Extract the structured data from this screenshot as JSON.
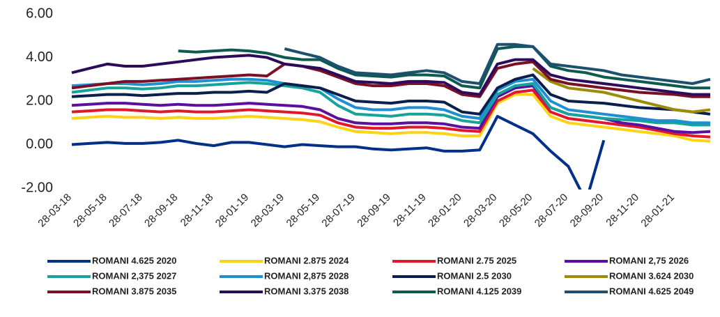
{
  "chart_data": {
    "type": "line",
    "x": [
      "28-03-18",
      "28-04-18",
      "28-05-18",
      "28-06-18",
      "28-07-18",
      "28-08-18",
      "28-09-18",
      "28-10-18",
      "28-11-18",
      "28-12-18",
      "28-01-19",
      "28-02-19",
      "28-03-19",
      "28-04-19",
      "28-05-19",
      "28-06-19",
      "28-07-19",
      "28-08-19",
      "28-09-19",
      "28-10-19",
      "28-11-19",
      "28-12-19",
      "28-01-20",
      "28-02-20",
      "28-03-20",
      "28-04-20",
      "28-05-20",
      "28-06-20",
      "28-07-20",
      "28-08-20",
      "28-09-20",
      "28-10-20",
      "28-11-20",
      "28-12-20",
      "28-01-21",
      "28-02-21",
      "28-03-21"
    ],
    "xlim": [
      "28-03-18",
      "28-03-21"
    ],
    "xticks": [
      "28-03-18",
      "28-05-18",
      "28-07-18",
      "28-09-18",
      "28-11-18",
      "28-01-19",
      "28-03-19",
      "28-05-19",
      "28-07-19",
      "28-09-19",
      "28-11-19",
      "28-01-20",
      "28-03-20",
      "28-05-20",
      "28-07-20",
      "28-09-20",
      "28-11-20",
      "28-01-21"
    ],
    "ylim": [
      -2,
      6
    ],
    "yticks": [
      {
        "value": -2,
        "label": "-2.00"
      },
      {
        "value": 0,
        "label": "0.00"
      },
      {
        "value": 2,
        "label": "2.00"
      },
      {
        "value": 4,
        "label": "4.00"
      },
      {
        "value": 6,
        "label": "6.00"
      }
    ],
    "grid": false,
    "legend": "bottom",
    "series": [
      {
        "name": "ROMANI 4.625  2020",
        "color": "#003087",
        "values": [
          0.0,
          0.05,
          0.1,
          0.05,
          0.05,
          0.1,
          0.2,
          0.05,
          -0.05,
          0.1,
          0.1,
          0.0,
          -0.1,
          0.0,
          -0.05,
          -0.1,
          -0.1,
          -0.2,
          -0.25,
          -0.2,
          -0.15,
          -0.3,
          -0.3,
          -0.25,
          1.3,
          0.9,
          0.5,
          -0.3,
          -1.0,
          -2.6,
          0.2,
          null,
          null,
          null,
          null,
          null,
          null
        ]
      },
      {
        "name": "ROMANI 2.875  2024",
        "color": "#ffd21a",
        "values": [
          1.2,
          1.25,
          1.3,
          1.25,
          1.25,
          1.2,
          1.25,
          1.2,
          1.2,
          1.25,
          1.3,
          1.25,
          1.2,
          1.15,
          1.05,
          0.8,
          0.6,
          0.55,
          0.5,
          0.55,
          0.55,
          0.5,
          0.4,
          0.4,
          1.9,
          2.3,
          2.3,
          1.3,
          1.0,
          0.9,
          0.8,
          0.7,
          0.6,
          0.5,
          0.4,
          0.2,
          0.15
        ]
      },
      {
        "name": "ROMANI 2.75 2025",
        "color": "#e0182d",
        "values": [
          1.5,
          1.55,
          1.6,
          1.6,
          1.55,
          1.5,
          1.55,
          1.5,
          1.5,
          1.55,
          1.6,
          1.55,
          1.5,
          1.45,
          1.35,
          1.0,
          0.8,
          0.75,
          0.75,
          0.8,
          0.8,
          0.75,
          0.65,
          0.6,
          2.0,
          2.4,
          2.5,
          1.5,
          1.2,
          1.1,
          1.0,
          0.9,
          0.8,
          0.65,
          0.5,
          0.4,
          0.35
        ]
      },
      {
        "name": "ROMANI 2,75 2026",
        "color": "#5b0f9e",
        "values": [
          1.8,
          1.85,
          1.9,
          1.9,
          1.85,
          1.8,
          1.85,
          1.8,
          1.8,
          1.85,
          1.9,
          1.85,
          1.8,
          1.75,
          1.6,
          1.2,
          1.0,
          0.95,
          0.95,
          1.0,
          1.0,
          0.95,
          0.8,
          0.75,
          2.2,
          2.6,
          2.7,
          1.7,
          1.4,
          1.3,
          1.2,
          1.0,
          0.9,
          0.75,
          0.6,
          0.55,
          0.6
        ]
      },
      {
        "name": "ROMANI 2,375 2027",
        "color": "#17a39b",
        "values": [
          2.4,
          2.5,
          2.6,
          2.6,
          2.55,
          2.6,
          2.7,
          2.7,
          2.75,
          2.8,
          2.85,
          2.8,
          2.7,
          2.6,
          2.4,
          1.8,
          1.4,
          1.35,
          1.3,
          1.4,
          1.4,
          1.35,
          1.1,
          1.0,
          2.3,
          2.7,
          2.8,
          1.7,
          1.4,
          1.3,
          1.2,
          1.15,
          1.1,
          1.0,
          1.0,
          0.9,
          0.9
        ]
      },
      {
        "name": "ROMANI 2,875 2028",
        "color": "#1f8fd2",
        "values": [
          2.7,
          2.75,
          2.8,
          2.8,
          2.75,
          2.8,
          2.9,
          2.9,
          2.95,
          3.0,
          3.0,
          2.95,
          2.8,
          2.7,
          2.6,
          2.1,
          1.7,
          1.6,
          1.6,
          1.7,
          1.7,
          1.6,
          1.3,
          1.2,
          2.5,
          2.9,
          3.0,
          2.0,
          1.6,
          1.5,
          1.4,
          1.3,
          1.2,
          1.1,
          1.1,
          1.0,
          1.0
        ]
      },
      {
        "name": "ROMANI 2.5 2030",
        "color": "#0b1f4d",
        "values": [
          2.2,
          2.25,
          2.3,
          2.3,
          2.25,
          2.3,
          2.35,
          2.35,
          2.4,
          2.4,
          2.45,
          2.4,
          2.8,
          2.7,
          2.6,
          2.3,
          2.0,
          1.95,
          1.9,
          2.0,
          2.0,
          1.95,
          1.5,
          1.4,
          2.6,
          3.0,
          3.2,
          2.3,
          2.0,
          1.95,
          1.9,
          1.8,
          1.7,
          1.65,
          1.6,
          1.5,
          1.4
        ]
      },
      {
        "name": "ROMANI 3.624 2030",
        "color": "#9c8c0a",
        "values": [
          null,
          null,
          null,
          null,
          null,
          null,
          null,
          null,
          null,
          null,
          null,
          null,
          null,
          null,
          null,
          null,
          null,
          null,
          null,
          null,
          null,
          null,
          null,
          null,
          null,
          null,
          3.5,
          2.9,
          2.6,
          2.5,
          2.4,
          2.2,
          2.0,
          1.8,
          1.6,
          1.5,
          1.6
        ]
      },
      {
        "name": "ROMANI 3.875 2035",
        "color": "#7a1024",
        "values": [
          2.6,
          2.7,
          2.8,
          2.9,
          2.9,
          2.95,
          3.0,
          3.05,
          3.1,
          3.15,
          3.2,
          3.15,
          3.7,
          3.6,
          3.4,
          3.1,
          2.8,
          2.7,
          2.7,
          2.8,
          2.8,
          2.7,
          2.3,
          2.2,
          3.5,
          3.7,
          3.8,
          3.0,
          2.8,
          2.7,
          2.6,
          2.5,
          2.4,
          2.35,
          2.3,
          2.2,
          2.2
        ]
      },
      {
        "name": "ROMANI 3.375 2038",
        "color": "#2c0b5c",
        "values": [
          3.3,
          3.5,
          3.7,
          3.6,
          3.6,
          3.7,
          3.8,
          3.9,
          4.0,
          4.05,
          4.1,
          4.0,
          3.7,
          3.6,
          3.5,
          3.2,
          2.9,
          2.85,
          2.8,
          2.9,
          2.9,
          2.85,
          2.4,
          2.3,
          3.7,
          3.9,
          3.9,
          3.2,
          3.0,
          2.9,
          2.8,
          2.7,
          2.6,
          2.5,
          2.4,
          2.3,
          2.3
        ]
      },
      {
        "name": "ROMANI 4.125 2039",
        "color": "#0d5b50",
        "values": [
          null,
          null,
          null,
          null,
          null,
          null,
          4.3,
          4.25,
          4.3,
          4.35,
          4.3,
          4.2,
          4.0,
          3.9,
          3.9,
          3.5,
          3.2,
          3.15,
          3.1,
          3.2,
          3.2,
          3.15,
          2.7,
          2.6,
          4.4,
          4.5,
          4.5,
          3.6,
          3.4,
          3.3,
          3.1,
          3.0,
          2.9,
          2.8,
          2.7,
          2.6,
          2.6
        ]
      },
      {
        "name": "ROMANI 4.625 2049",
        "color": "#1d4f6e",
        "values": [
          null,
          null,
          null,
          null,
          null,
          null,
          null,
          null,
          null,
          null,
          null,
          null,
          4.4,
          4.2,
          4.0,
          3.6,
          3.3,
          3.25,
          3.2,
          3.3,
          3.4,
          3.3,
          2.9,
          2.8,
          4.6,
          4.6,
          4.5,
          3.7,
          3.6,
          3.5,
          3.4,
          3.2,
          3.1,
          3.0,
          2.9,
          2.8,
          3.0
        ]
      }
    ]
  }
}
